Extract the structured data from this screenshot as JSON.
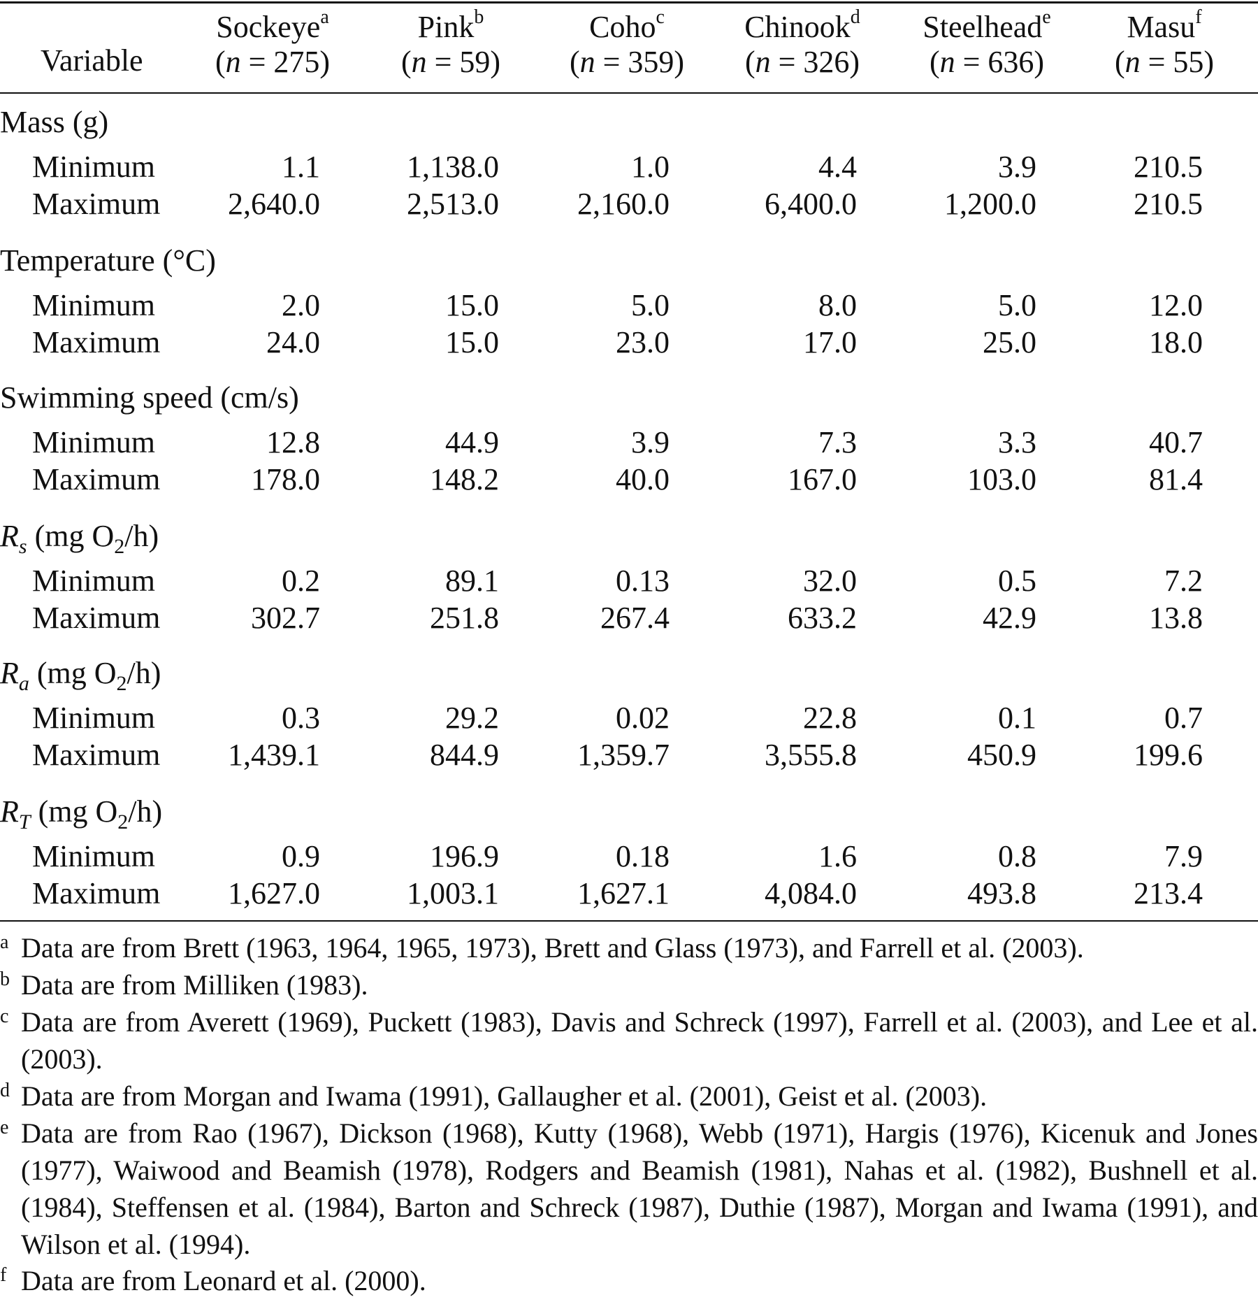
{
  "table": {
    "variable_header": "Variable",
    "columns": [
      {
        "name": "Sockeye",
        "mark": "a",
        "n_prefix": "(",
        "n_var": "n",
        "n_rest": " = 275)"
      },
      {
        "name": "Pink",
        "mark": "b",
        "n_prefix": "(",
        "n_var": "n",
        "n_rest": " = 59)"
      },
      {
        "name": "Coho",
        "mark": "c",
        "n_prefix": "(",
        "n_var": "n",
        "n_rest": " = 359)"
      },
      {
        "name": "Chinook",
        "mark": "d",
        "n_prefix": "(",
        "n_var": "n",
        "n_rest": " = 326)"
      },
      {
        "name": "Steelhead",
        "mark": "e",
        "n_prefix": "(",
        "n_var": "n",
        "n_rest": " = 636)"
      },
      {
        "name": "Masu",
        "mark": "f",
        "n_prefix": "(",
        "n_var": "n",
        "n_rest": " = 55)"
      }
    ],
    "sections": [
      {
        "label_pre": "Mass (g)",
        "symbol": "",
        "sub": "",
        "unit": "",
        "unit_sub": "",
        "unit_post": "",
        "rows": [
          {
            "label": "Minimum",
            "values": [
              "1.1",
              "1,138.0",
              "1.0",
              "4.4",
              "3.9",
              "210.5"
            ]
          },
          {
            "label": "Maximum",
            "values": [
              "2,640.0",
              "2,513.0",
              "2,160.0",
              "6,400.0",
              "1,200.0",
              "210.5"
            ]
          }
        ]
      },
      {
        "label_pre": "Temperature (°C)",
        "symbol": "",
        "sub": "",
        "unit": "",
        "unit_sub": "",
        "unit_post": "",
        "rows": [
          {
            "label": "Minimum",
            "values": [
              "2.0",
              "15.0",
              "5.0",
              "8.0",
              "5.0",
              "12.0"
            ]
          },
          {
            "label": "Maximum",
            "values": [
              "24.0",
              "15.0",
              "23.0",
              "17.0",
              "25.0",
              "18.0"
            ]
          }
        ]
      },
      {
        "label_pre": "Swimming speed (cm/s)",
        "symbol": "",
        "sub": "",
        "unit": "",
        "unit_sub": "",
        "unit_post": "",
        "rows": [
          {
            "label": "Minimum",
            "values": [
              "12.8",
              "44.9",
              "3.9",
              "7.3",
              "3.3",
              "40.7"
            ]
          },
          {
            "label": "Maximum",
            "values": [
              "178.0",
              "148.2",
              "40.0",
              "167.0",
              "103.0",
              "81.4"
            ]
          }
        ]
      },
      {
        "label_pre": "",
        "symbol": "R",
        "sub": "s",
        "unit": " (mg O",
        "unit_sub": "2",
        "unit_post": "/h)",
        "rows": [
          {
            "label": "Minimum",
            "values": [
              "0.2",
              "89.1",
              "0.13",
              "32.0",
              "0.5",
              "7.2"
            ]
          },
          {
            "label": "Maximum",
            "values": [
              "302.7",
              "251.8",
              "267.4",
              "633.2",
              "42.9",
              "13.8"
            ]
          }
        ]
      },
      {
        "label_pre": "",
        "symbol": "R",
        "sub": "a",
        "unit": " (mg O",
        "unit_sub": "2",
        "unit_post": "/h)",
        "rows": [
          {
            "label": "Minimum",
            "values": [
              "0.3",
              "29.2",
              "0.02",
              "22.8",
              "0.1",
              "0.7"
            ]
          },
          {
            "label": "Maximum",
            "values": [
              "1,439.1",
              "844.9",
              "1,359.7",
              "3,555.8",
              "450.9",
              "199.6"
            ]
          }
        ]
      },
      {
        "label_pre": "",
        "symbol": "R",
        "sub": "T",
        "unit": " (mg O",
        "unit_sub": "2",
        "unit_post": "/h)",
        "rows": [
          {
            "label": "Minimum",
            "values": [
              "0.9",
              "196.9",
              "0.18",
              "1.6",
              "0.8",
              "7.9"
            ]
          },
          {
            "label": "Maximum",
            "values": [
              "1,627.0",
              "1,003.1",
              "1,627.1",
              "4,084.0",
              "493.8",
              "213.4"
            ]
          }
        ]
      }
    ]
  },
  "footnotes": [
    {
      "mark": "a",
      "text": "Data are from Brett (1963, 1964, 1965, 1973), Brett and Glass (1973), and Farrell et al. (2003)."
    },
    {
      "mark": "b",
      "text": "Data are from Milliken (1983)."
    },
    {
      "mark": "c",
      "text": "Data are from Averett (1969), Puckett (1983), Davis and Schreck (1997), Farrell et al. (2003), and Lee et al. (2003)."
    },
    {
      "mark": "d",
      "text": "Data are from Morgan and Iwama (1991), Gallaugher et al. (2001), Geist et al. (2003)."
    },
    {
      "mark": "e",
      "text": "Data are from Rao (1967), Dickson (1968), Kutty (1968), Webb (1971), Hargis (1976), Kicenuk and Jones (1977), Waiwood and Beamish (1978), Rodgers and Beamish (1981), Nahas et al. (1982), Bushnell et al. (1984), Steffensen et al. (1984), Barton and Schreck (1987), Duthie (1987), Morgan and Iwama (1991), and Wilson et al. (1994)."
    },
    {
      "mark": "f",
      "text": "Data are from Leonard et al. (2000)."
    }
  ]
}
